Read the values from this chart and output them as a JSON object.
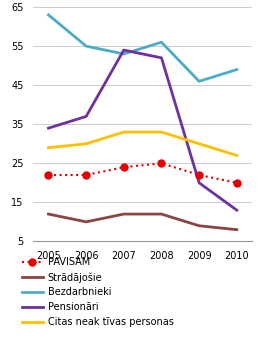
{
  "years": [
    2005,
    2006,
    2007,
    2008,
    2009,
    2010
  ],
  "pavisam": [
    22,
    22,
    24,
    25,
    22,
    20
  ],
  "stradajosie": [
    12,
    10,
    12,
    12,
    9,
    8
  ],
  "bezdarbnieki": [
    63,
    55,
    53,
    56,
    46,
    49
  ],
  "pensionari": [
    34,
    37,
    54,
    52,
    20,
    13
  ],
  "citas": [
    29,
    30,
    33,
    33,
    30,
    27
  ],
  "pavisam_color": "#e60000",
  "stradajosie_color": "#8b4444",
  "bezdarbnieki_color": "#4bacc6",
  "pensionari_color": "#7030a0",
  "citas_color": "#ffc000",
  "ylim": [
    5,
    65
  ],
  "yticks": [
    5,
    15,
    25,
    35,
    45,
    55,
    65
  ],
  "background_color": "#ffffff",
  "figwidth": 2.57,
  "figheight": 3.55,
  "dpi": 100
}
